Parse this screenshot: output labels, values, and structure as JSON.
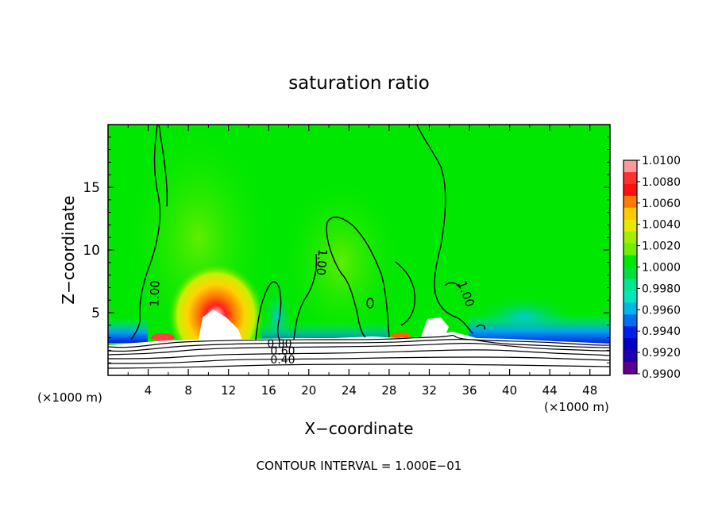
{
  "chart_data": {
    "type": "heatmap",
    "title": "saturation ratio",
    "xlabel": "X−coordinate",
    "ylabel": "Z−coordinate",
    "x_unit_left": "(×1000 m)",
    "x_unit_right": "(×1000 m)",
    "footer": "CONTOUR INTERVAL = 1.000E−01",
    "xlim": [
      0,
      50
    ],
    "ylim": [
      0,
      20
    ],
    "x_ticks": [
      4,
      8,
      12,
      16,
      20,
      24,
      28,
      32,
      36,
      40,
      44,
      48
    ],
    "x_tick_labels": [
      "4",
      "8",
      "12",
      "16",
      "20",
      "24",
      "28",
      "32",
      "36",
      "40",
      "44",
      "48"
    ],
    "y_ticks": [
      5,
      10,
      15
    ],
    "y_tick_labels": [
      "5",
      "10",
      "15"
    ],
    "colorbar": {
      "min": 0.99,
      "max": 1.01,
      "tick_labels": [
        "1.0100",
        "1.0080",
        "1.0060",
        "1.0040",
        "1.0020",
        "1.0000",
        "0.9980",
        "0.9960",
        "0.9940",
        "0.9920",
        "0.9900"
      ],
      "colors": [
        "#ff9a9a",
        "#ff3030",
        "#ff1010",
        "#ff7a00",
        "#ffc800",
        "#e8e800",
        "#a0f000",
        "#70f000",
        "#00e800",
        "#00e040",
        "#00e890",
        "#00e8c0",
        "#00b8e8",
        "#0070f0",
        "#0020e8",
        "#0000c8",
        "#2000b0",
        "#600090"
      ]
    },
    "contour_labels": [
      "1.00",
      "1.00",
      "1.00",
      "1.00",
      "0.80",
      "0.60",
      "0.40"
    ]
  }
}
